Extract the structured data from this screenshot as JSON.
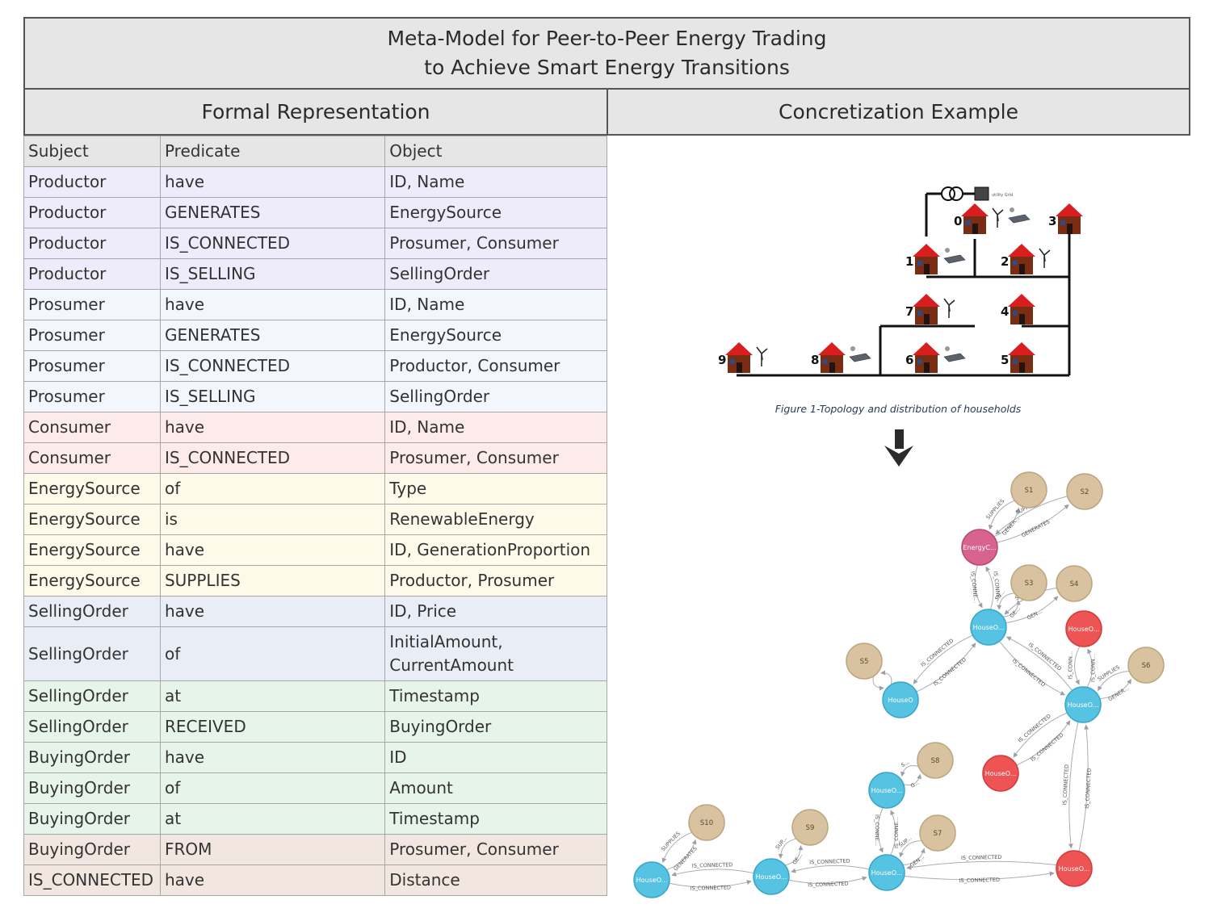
{
  "title": {
    "line1": "Meta-Model for Peer-to-Peer Energy Trading",
    "line2": "to Achieve Smart Energy Transitions"
  },
  "columns": {
    "left": "Formal Representation",
    "right": "Concretization Example"
  },
  "colors": {
    "header": "#e6e6e6",
    "productor": "#eeecfa",
    "prosumer": "#f4f6fd",
    "consumer": "#fdebea",
    "energysource": "#fdfaea",
    "sellingorder": "#e8edf6",
    "greenblock": "#e7f4ea",
    "tan": "#f2e7e0",
    "node_house": "#57c3e3",
    "node_house_consumer": "#ef5455",
    "node_source": "#d8c2a0",
    "node_energy": "#d8638c"
  },
  "table": {
    "header": [
      "Subject",
      "Predicate",
      "Object"
    ],
    "rows": [
      {
        "s": "Productor",
        "p": "have",
        "o": "ID, Name",
        "group": "productor"
      },
      {
        "s": "Productor",
        "p": "GENERATES",
        "o": "EnergySource",
        "group": "productor"
      },
      {
        "s": "Productor",
        "p": "IS_CONNECTED",
        "o": "Prosumer, Consumer",
        "group": "productor"
      },
      {
        "s": "Productor",
        "p": "IS_SELLING",
        "o": "SellingOrder",
        "group": "productor"
      },
      {
        "s": "Prosumer",
        "p": "have",
        "o": "ID, Name",
        "group": "prosumer"
      },
      {
        "s": "Prosumer",
        "p": "GENERATES",
        "o": "EnergySource",
        "group": "prosumer"
      },
      {
        "s": "Prosumer",
        "p": "IS_CONNECTED",
        "o": "Productor, Consumer",
        "group": "prosumer"
      },
      {
        "s": "Prosumer",
        "p": "IS_SELLING",
        "o": "SellingOrder",
        "group": "prosumer"
      },
      {
        "s": "Consumer",
        "p": "have",
        "o": "ID, Name",
        "group": "consumer"
      },
      {
        "s": "Consumer",
        "p": "IS_CONNECTED",
        "o": "Prosumer, Consumer",
        "group": "consumer"
      },
      {
        "s": "EnergySource",
        "p": "of",
        "o": "Type",
        "group": "energysource"
      },
      {
        "s": "EnergySource",
        "p": "is",
        "o": "RenewableEnergy",
        "group": "energysource"
      },
      {
        "s": "EnergySource",
        "p": "have",
        "o": "ID, GenerationProportion",
        "group": "energysource"
      },
      {
        "s": "EnergySource",
        "p": "SUPPLIES",
        "o": "Productor, Prosumer",
        "group": "energysource"
      },
      {
        "s": "SellingOrder",
        "p": "have",
        "o": "ID, Price",
        "group": "sellingorder"
      },
      {
        "s": "SellingOrder",
        "p": "of",
        "o": "InitialAmount,\nCurrentAmount",
        "group": "sellingorder"
      },
      {
        "s": "SellingOrder",
        "p": "at",
        "o": "Timestamp",
        "group": "greenblock"
      },
      {
        "s": "SellingOrder",
        "p": "RECEIVED",
        "o": "BuyingOrder",
        "group": "greenblock"
      },
      {
        "s": "BuyingOrder",
        "p": "have",
        "o": "ID",
        "group": "greenblock"
      },
      {
        "s": "BuyingOrder",
        "p": "of",
        "o": "Amount",
        "group": "greenblock"
      },
      {
        "s": "BuyingOrder",
        "p": "at",
        "o": "Timestamp",
        "group": "greenblock"
      },
      {
        "s": "BuyingOrder",
        "p": "FROM",
        "o": "Prosumer, Consumer",
        "group": "tan"
      },
      {
        "s": "IS_CONNECTED",
        "p": "have",
        "o": "Distance",
        "group": "tan"
      }
    ]
  },
  "topology": {
    "caption": "Figure 1-Topology and distribution of households",
    "grid_label": "utility Grid",
    "houses": [
      {
        "label": "0",
        "extras": [
          "wind",
          "solar"
        ]
      },
      {
        "label": "1",
        "extras": [
          "solar"
        ]
      },
      {
        "label": "2",
        "extras": [
          "wind"
        ]
      },
      {
        "label": "3",
        "extras": []
      },
      {
        "label": "4",
        "extras": []
      },
      {
        "label": "5",
        "extras": []
      },
      {
        "label": "6",
        "extras": [
          "solar"
        ]
      },
      {
        "label": "7",
        "extras": [
          "wind"
        ]
      },
      {
        "label": "8",
        "extras": [
          "solar"
        ]
      },
      {
        "label": "9",
        "extras": [
          "wind"
        ]
      }
    ]
  },
  "graph": {
    "nodes": [
      {
        "id": "S1",
        "label": "S1",
        "kind": "source"
      },
      {
        "id": "S2",
        "label": "S2",
        "kind": "source"
      },
      {
        "id": "EC",
        "label": "EnergyC...",
        "kind": "energy"
      },
      {
        "id": "S3",
        "label": "S3",
        "kind": "source"
      },
      {
        "id": "S4",
        "label": "S4",
        "kind": "source"
      },
      {
        "id": "HA",
        "label": "HouseO...",
        "kind": "house"
      },
      {
        "id": "HR1",
        "label": "HouseO...",
        "kind": "consumer"
      },
      {
        "id": "S5",
        "label": "S5",
        "kind": "source"
      },
      {
        "id": "S6",
        "label": "S6",
        "kind": "source"
      },
      {
        "id": "HB",
        "label": "HouseO",
        "kind": "house"
      },
      {
        "id": "HC",
        "label": "HouseO...",
        "kind": "house"
      },
      {
        "id": "HR2",
        "label": "HouseO...",
        "kind": "consumer"
      },
      {
        "id": "S8",
        "label": "S8",
        "kind": "source"
      },
      {
        "id": "HD",
        "label": "HouseO...",
        "kind": "house"
      },
      {
        "id": "S10",
        "label": "S10",
        "kind": "source"
      },
      {
        "id": "S9",
        "label": "S9",
        "kind": "source"
      },
      {
        "id": "S7",
        "label": "S7",
        "kind": "source"
      },
      {
        "id": "HE",
        "label": "HouseO...",
        "kind": "house"
      },
      {
        "id": "HF",
        "label": "HouseO...",
        "kind": "house"
      },
      {
        "id": "HG",
        "label": "HouseO...",
        "kind": "house"
      },
      {
        "id": "HR3",
        "label": "HouseO...",
        "kind": "consumer"
      }
    ],
    "edges": [
      {
        "from": "EC",
        "to": "S1",
        "label": "GENER...",
        "curve": -1
      },
      {
        "from": "S1",
        "to": "EC",
        "label": "SUPPLIES",
        "curve": -1
      },
      {
        "from": "EC",
        "to": "S2",
        "label": "GENERATES",
        "curve": 1
      },
      {
        "from": "S2",
        "to": "EC",
        "label": "SUPPLIES",
        "curve": 1
      },
      {
        "from": "EC",
        "to": "HA",
        "label": "IS_CONNE...",
        "curve": -1
      },
      {
        "from": "HA",
        "to": "EC",
        "label": "IS_CONNE...",
        "curve": -1
      },
      {
        "from": "HA",
        "to": "S3",
        "label": "GE...",
        "curve": -1
      },
      {
        "from": "S3",
        "to": "HA",
        "label": "SU...",
        "curve": -1
      },
      {
        "from": "HA",
        "to": "S4",
        "label": "GEN...",
        "curve": 1
      },
      {
        "from": "S4",
        "to": "HA",
        "label": "SUPPLIES",
        "curve": 1
      },
      {
        "from": "HB",
        "to": "HA",
        "label": "IS_CONNECTED",
        "curve": -1
      },
      {
        "from": "HA",
        "to": "HB",
        "label": "IS_CONNECTED",
        "curve": -1
      },
      {
        "from": "S5",
        "to": "HB",
        "label": "",
        "curve": -1
      },
      {
        "from": "HB",
        "to": "S5",
        "label": "",
        "curve": -1
      },
      {
        "from": "HA",
        "to": "HC",
        "label": "IS_CONNECTED",
        "curve": -1
      },
      {
        "from": "HC",
        "to": "HA",
        "label": "IS_CONNECTED",
        "curve": -1
      },
      {
        "from": "HR1",
        "to": "HC",
        "label": "IS_CONN...",
        "curve": -1
      },
      {
        "from": "HC",
        "to": "HR1",
        "label": "IS_CONN...",
        "curve": -1
      },
      {
        "from": "HC",
        "to": "S6",
        "label": "GENER...",
        "curve": -1
      },
      {
        "from": "S6",
        "to": "HC",
        "label": "SUPPLIES",
        "curve": -1
      },
      {
        "from": "HR2",
        "to": "HC",
        "label": "IS_CONNECTED",
        "curve": -1
      },
      {
        "from": "HC",
        "to": "HR2",
        "label": "IS_CONNECTED",
        "curve": -1
      },
      {
        "from": "HC",
        "to": "HR3",
        "label": "IS_CONNECTED",
        "curve": -1
      },
      {
        "from": "HR3",
        "to": "HC",
        "label": "IS_CONNECTED",
        "curve": -1
      },
      {
        "from": "HD",
        "to": "S8",
        "label": "G...",
        "curve": -1
      },
      {
        "from": "S8",
        "to": "HD",
        "label": "S...",
        "curve": -1
      },
      {
        "from": "HD",
        "to": "HG",
        "label": "IS_CONNE...",
        "curve": -1
      },
      {
        "from": "HG",
        "to": "HD",
        "label": "IS_CONNE...",
        "curve": -1
      },
      {
        "from": "HG",
        "to": "S7",
        "label": "GEN...",
        "curve": -1
      },
      {
        "from": "S7",
        "to": "HG",
        "label": "SUP...",
        "curve": -1
      },
      {
        "from": "HE",
        "to": "S10",
        "label": "GENERATES",
        "curve": -1
      },
      {
        "from": "S10",
        "to": "HE",
        "label": "SUPPLIES",
        "curve": -1
      },
      {
        "from": "HE",
        "to": "HF",
        "label": "IS_CONNECTED",
        "curve": -1
      },
      {
        "from": "HF",
        "to": "HE",
        "label": "IS_CONNECTED",
        "curve": -1
      },
      {
        "from": "HF",
        "to": "S9",
        "label": "GE...",
        "curve": -1
      },
      {
        "from": "S9",
        "to": "HF",
        "label": "SUP...",
        "curve": -1
      },
      {
        "from": "HF",
        "to": "HG",
        "label": "IS_CONNECTED",
        "curve": -1
      },
      {
        "from": "HG",
        "to": "HF",
        "label": "IS_CONNECTED",
        "curve": -1
      },
      {
        "from": "HG",
        "to": "HR3",
        "label": "IS_CONNECTED",
        "curve": -1
      },
      {
        "from": "HR3",
        "to": "HG",
        "label": "IS_CONNECTED",
        "curve": -1
      }
    ]
  }
}
